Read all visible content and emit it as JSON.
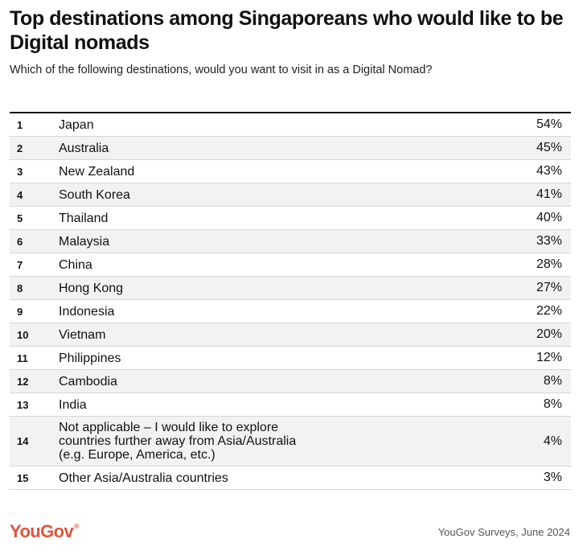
{
  "title": "Top destinations among Singaporeans who would like to be Digital nomads",
  "subtitle": "Which of the following destinations, would you want to visit in as a Digital Nomad?",
  "chart_data": {
    "type": "table",
    "title": "Top destinations among Singaporeans who would like to be Digital nomads",
    "subtitle": "Which of the following destinations, would you want to visit in as a Digital Nomad?",
    "rows": [
      {
        "rank": "1",
        "destination": "Japan",
        "value": "54%"
      },
      {
        "rank": "2",
        "destination": "Australia",
        "value": "45%"
      },
      {
        "rank": "3",
        "destination": "New Zealand",
        "value": "43%"
      },
      {
        "rank": "4",
        "destination": "South Korea",
        "value": "41%"
      },
      {
        "rank": "5",
        "destination": "Thailand",
        "value": "40%"
      },
      {
        "rank": "6",
        "destination": "Malaysia",
        "value": "33%"
      },
      {
        "rank": "7",
        "destination": "China",
        "value": "28%"
      },
      {
        "rank": "8",
        "destination": "Hong Kong",
        "value": "27%"
      },
      {
        "rank": "9",
        "destination": "Indonesia",
        "value": "22%"
      },
      {
        "rank": "10",
        "destination": "Vietnam",
        "value": "20%"
      },
      {
        "rank": "11",
        "destination": "Philippines",
        "value": "12%"
      },
      {
        "rank": "12",
        "destination": "Cambodia",
        "value": "8%"
      },
      {
        "rank": "13",
        "destination": "India",
        "value": "8%"
      },
      {
        "rank": "14",
        "destination": "Not applicable – I would like to explore\ncountries further away from Asia/Australia\n(e.g. Europe, America, etc.)",
        "value": "4%"
      },
      {
        "rank": "15",
        "destination": "Other Asia/Australia countries",
        "value": "3%"
      }
    ],
    "colors": {
      "shade": "#f2f2f2",
      "rule": "#d6d6d6"
    }
  },
  "footer": {
    "logo": "YouGov",
    "logo_mark": "®",
    "logo_color": "#e2543d",
    "source": "YouGov Surveys, June 2024"
  }
}
